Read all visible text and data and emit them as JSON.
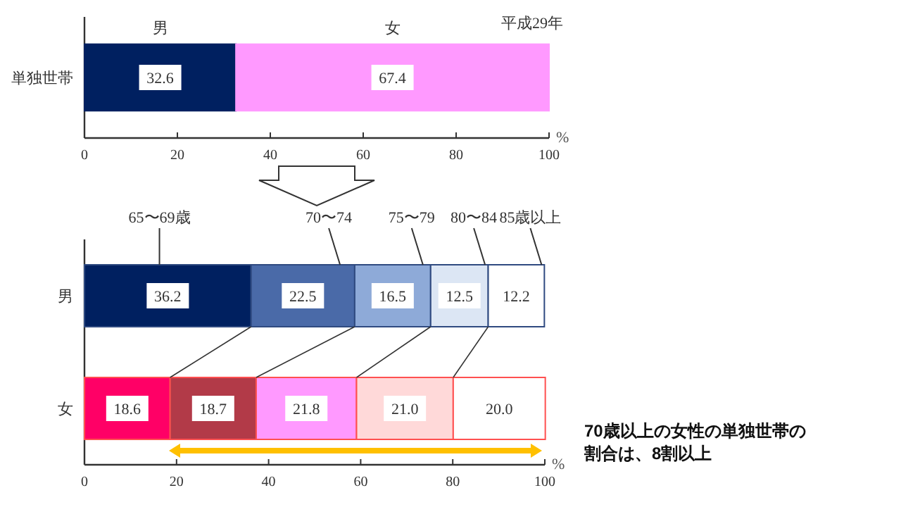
{
  "chart_data": [
    {
      "type": "bar",
      "orientation": "horizontal",
      "stacked": true,
      "categories": [
        "単独世帯"
      ],
      "series": [
        {
          "name": "男",
          "color": "#002060",
          "values": [
            32.6
          ],
          "value_labels": [
            "32.6"
          ]
        },
        {
          "name": "女",
          "color": "#ff99ff",
          "values": [
            67.4
          ],
          "value_labels": [
            "67.4"
          ]
        }
      ],
      "xlim": [
        0,
        100
      ],
      "xticks": [
        0,
        20,
        40,
        60,
        80,
        100
      ],
      "xlabel": "%",
      "annotations": [
        "平成29年"
      ]
    },
    {
      "type": "bar",
      "orientation": "horizontal",
      "stacked": true,
      "categories": [
        "男",
        "女"
      ],
      "series": [
        {
          "name": "65〜69歳",
          "colors": [
            "#002060",
            "#ff0066"
          ],
          "values": [
            36.2,
            18.6
          ],
          "value_labels": [
            "36.2",
            "18.6"
          ]
        },
        {
          "name": "70〜74",
          "colors": [
            "#4a6aa8",
            "#b23a48"
          ],
          "values": [
            22.5,
            18.7
          ],
          "value_labels": [
            "22.5",
            "18.7"
          ]
        },
        {
          "name": "75〜79",
          "colors": [
            "#8eaad8",
            "#ff99ff"
          ],
          "values": [
            16.5,
            21.8
          ],
          "value_labels": [
            "16.5",
            "21.8"
          ]
        },
        {
          "name": "80〜84",
          "colors": [
            "#dce6f4",
            "#ffd9d9"
          ],
          "values": [
            12.5,
            21.0
          ],
          "value_labels": [
            "12.5",
            "21.0"
          ]
        },
        {
          "name": "85歳以上",
          "colors": [
            "#ffffff",
            "#ffffff"
          ],
          "values": [
            12.2,
            20.0
          ],
          "value_labels": [
            "12.2",
            "20.0"
          ]
        }
      ],
      "xlim": [
        0,
        100
      ],
      "xticks": [
        0,
        20,
        40,
        60,
        80,
        100
      ],
      "xlabel": "%",
      "annotations": [
        "70歳以上の女性の単独世帯の割合は、8割以上"
      ]
    }
  ]
}
